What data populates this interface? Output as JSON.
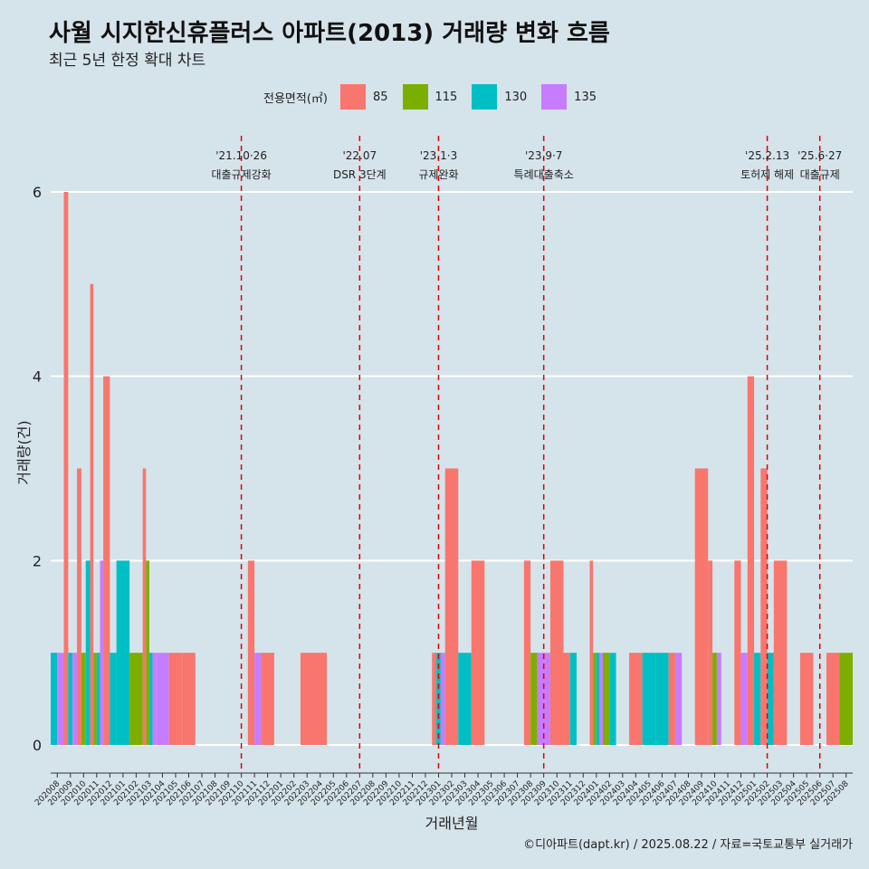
{
  "title": "사월 시지한신휴플러스 아파트(2013) 거래량 변화 흐름",
  "subtitle": "최근 5년 한정 확대 차트",
  "caption": "©디아파트(dapt.kr) / 2025.08.22 / 자료=국토교통부 실거래가",
  "legend": {
    "title": "전용면적(㎡)",
    "items": [
      {
        "label": "85",
        "color": "#F8766D"
      },
      {
        "label": "115",
        "color": "#7CAE00"
      },
      {
        "label": "130",
        "color": "#00BFC4"
      },
      {
        "label": "135",
        "color": "#C77CFF"
      }
    ]
  },
  "chart_data": {
    "type": "bar",
    "xlabel": "거래년월",
    "ylabel": "거래량(건)",
    "ylim": [
      0,
      6
    ],
    "yticks": [
      0,
      2,
      4,
      6
    ],
    "categories": [
      "202008",
      "202009",
      "202010",
      "202011",
      "202012",
      "202101",
      "202102",
      "202103",
      "202104",
      "202105",
      "202106",
      "202107",
      "202108",
      "202109",
      "202110",
      "202111",
      "202112",
      "202201",
      "202202",
      "202203",
      "202204",
      "202205",
      "202206",
      "202207",
      "202208",
      "202209",
      "202210",
      "202211",
      "202212",
      "202301",
      "202302",
      "202303",
      "202304",
      "202305",
      "202306",
      "202307",
      "202308",
      "202309",
      "202310",
      "202311",
      "202312",
      "202401",
      "202402",
      "202403",
      "202404",
      "202405",
      "202406",
      "202407",
      "202408",
      "202409",
      "202410",
      "202411",
      "202412",
      "202501",
      "202502",
      "202503",
      "202504",
      "202505",
      "202506",
      "202507",
      "202508"
    ],
    "series": [
      {
        "name": "85",
        "values": [
          0,
          6,
          3,
          5,
          4,
          0,
          0,
          3,
          0,
          1,
          1,
          0,
          0,
          0,
          0,
          2,
          1,
          0,
          0,
          1,
          1,
          0,
          0,
          0,
          0,
          0,
          0,
          0,
          0,
          1,
          3,
          0,
          2,
          0,
          0,
          0,
          2,
          0,
          2,
          1,
          0,
          2,
          0,
          0,
          1,
          0,
          0,
          1,
          0,
          3,
          2,
          0,
          2,
          4,
          3,
          2,
          0,
          1,
          0,
          1,
          0
        ]
      },
      {
        "name": "115",
        "values": [
          0,
          0,
          1,
          1,
          0,
          0,
          1,
          2,
          0,
          0,
          0,
          0,
          0,
          0,
          0,
          0,
          0,
          0,
          0,
          0,
          0,
          0,
          0,
          0,
          0,
          0,
          0,
          0,
          0,
          0,
          0,
          0,
          0,
          0,
          0,
          0,
          1,
          0,
          0,
          0,
          0,
          1,
          1,
          0,
          0,
          0,
          0,
          0,
          0,
          0,
          1,
          0,
          0,
          0,
          0,
          0,
          0,
          0,
          0,
          0,
          1
        ]
      },
      {
        "name": "130",
        "values": [
          1,
          1,
          2,
          1,
          1,
          2,
          0,
          1,
          0,
          0,
          0,
          0,
          0,
          0,
          0,
          0,
          0,
          0,
          0,
          0,
          0,
          0,
          0,
          0,
          0,
          0,
          0,
          0,
          0,
          1,
          0,
          1,
          0,
          0,
          0,
          0,
          0,
          0,
          0,
          1,
          0,
          1,
          1,
          0,
          0,
          1,
          1,
          0,
          0,
          0,
          0,
          0,
          0,
          1,
          1,
          0,
          0,
          0,
          0,
          0,
          0
        ]
      },
      {
        "name": "135",
        "values": [
          1,
          1,
          0,
          2,
          0,
          0,
          0,
          1,
          1,
          0,
          0,
          0,
          0,
          0,
          0,
          1,
          0,
          0,
          0,
          0,
          0,
          0,
          0,
          0,
          0,
          0,
          0,
          0,
          0,
          1,
          0,
          0,
          0,
          0,
          0,
          0,
          0,
          1,
          0,
          0,
          0,
          1,
          0,
          0,
          0,
          0,
          0,
          1,
          0,
          0,
          1,
          0,
          1,
          0,
          0,
          0,
          0,
          0,
          0,
          0,
          0
        ]
      }
    ],
    "grid": true,
    "annotations": [
      {
        "category": "202110",
        "date": "'21.10·26",
        "label": "대출규제강화"
      },
      {
        "category": "202207",
        "date": "'22.07",
        "label": "DSR 3단계"
      },
      {
        "category": "202301",
        "date": "'23.1·3",
        "label": "규제완화"
      },
      {
        "category": "202309",
        "date": "'23.9·7",
        "label": "특례대출축소"
      },
      {
        "category": "202502",
        "date": "'25.2.13",
        "label": "토허제 해제"
      },
      {
        "category": "202506",
        "date": "'25.6·27",
        "label": "대출규제"
      }
    ]
  }
}
